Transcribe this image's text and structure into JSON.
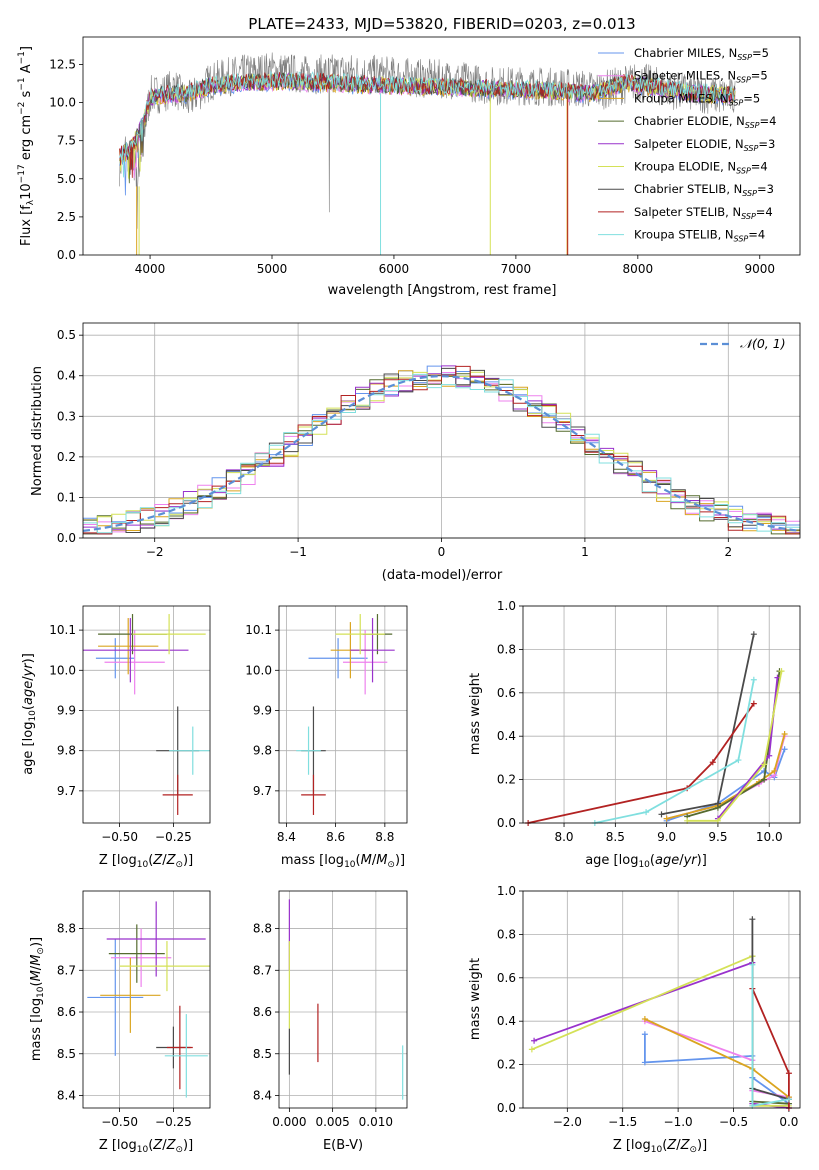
{
  "colors": [
    "#6495ed",
    "#ee82ee",
    "#daa520",
    "#556b2f",
    "#9932cc",
    "#d4e157",
    "#4a4a4a",
    "#b22222",
    "#80dfdf"
  ],
  "models": [
    {
      "label": "Chabrier MILES, N",
      "sub": "SSP",
      "n": "=5"
    },
    {
      "label": "Salpeter MILES, N",
      "sub": "SSP",
      "n": "=5"
    },
    {
      "label": "Kroupa MILES, N",
      "sub": "SSP",
      "n": "=5"
    },
    {
      "label": "Chabrier ELODIE, N",
      "sub": "SSP",
      "n": "=4"
    },
    {
      "label": "Salpeter ELODIE, N",
      "sub": "SSP",
      "n": "=3"
    },
    {
      "label": "Kroupa ELODIE, N",
      "sub": "SSP",
      "n": "=4"
    },
    {
      "label": "Chabrier STELIB, N",
      "sub": "SSP",
      "n": "=3"
    },
    {
      "label": "Salpeter STELIB, N",
      "sub": "SSP",
      "n": "=4"
    },
    {
      "label": "Kroupa STELIB, N",
      "sub": "SSP",
      "n": "=4"
    }
  ],
  "chart_data": [
    {
      "id": "spectrum",
      "type": "line",
      "title": "PLATE=2433, MJD=53820, FIBERID=0203, z=0.013",
      "xlabel": "wavelength [Angstrom, rest frame]",
      "ylabel": "Flux [fλ10⁻¹⁷ erg cm⁻² s⁻¹ A⁻¹]",
      "xlim": [
        3450,
        9330
      ],
      "ylim": [
        0,
        14.3
      ],
      "xticks": [
        4000,
        5000,
        6000,
        7000,
        8000,
        9000
      ],
      "yticks": [
        0.0,
        2.5,
        5.0,
        7.5,
        10.0,
        12.5
      ],
      "data_wavelength": [
        3750,
        3800,
        3850,
        3900,
        3950,
        4000,
        4100,
        4200,
        4300,
        4500,
        4700,
        5000,
        5300,
        5600,
        5900,
        6200,
        6500,
        6800,
        7100,
        7400,
        7700,
        8000,
        8300,
        8600,
        8800
      ],
      "data_flux": [
        5.8,
        7.0,
        6.0,
        5.5,
        8.0,
        10.5,
        10.6,
        11.0,
        10.0,
        11.4,
        11.8,
        12.1,
        11.8,
        12.0,
        11.8,
        11.6,
        11.5,
        11.1,
        11.1,
        11.0,
        10.8,
        11.4,
        10.8,
        10.5,
        10.3
      ],
      "model_wavelength": [
        3750,
        3850,
        3950,
        4000,
        4100,
        4300,
        4500,
        4800,
        5100,
        5400,
        5700,
        6000,
        6400,
        6800,
        7200,
        7600,
        7900,
        8200,
        8500,
        8700
      ],
      "model_flux": [
        6.5,
        7.0,
        8.8,
        10.3,
        10.5,
        10.6,
        11.1,
        11.3,
        11.4,
        11.3,
        11.2,
        11.1,
        11.0,
        10.9,
        10.8,
        10.6,
        11.3,
        10.9,
        10.6,
        10.5
      ],
      "grid": false,
      "legend": "upper-right"
    },
    {
      "id": "residuals",
      "type": "histogram",
      "xlabel": "(data-model)/error",
      "ylabel": "Normed distribution",
      "xlim": [
        -2.5,
        2.5
      ],
      "ylim": [
        0,
        0.53
      ],
      "xticks": [
        -2,
        -1,
        0,
        1,
        2
      ],
      "yticks": [
        0.0,
        0.1,
        0.2,
        0.3,
        0.4,
        0.5
      ],
      "bin_width": 0.1,
      "reference": "𝒩(0, 1)",
      "reference_color": "#5b8fd6",
      "grid": true,
      "legend": "upper-right"
    },
    {
      "id": "age_vs_Z",
      "type": "scatter",
      "xlabel": "Z [log₁₀(Z/Z⊙)]",
      "ylabel": "age  [log₁₀(age/yr)]",
      "xlim": [
        -0.67,
        -0.08
      ],
      "ylim": [
        9.62,
        10.16
      ],
      "xticks": [
        -0.5,
        -0.25
      ],
      "yticks": [
        9.7,
        9.8,
        9.9,
        10.0,
        10.1
      ],
      "points": [
        {
          "x": -0.52,
          "y": 10.03,
          "ex": 0.09,
          "ey": 0.05
        },
        {
          "x": -0.43,
          "y": 10.02,
          "ex": 0.14,
          "ey": 0.08
        },
        {
          "x": -0.46,
          "y": 10.06,
          "ex": 0.14,
          "ey": 0.07
        },
        {
          "x": -0.44,
          "y": 10.09,
          "ex": 0.16,
          "ey": 0.05
        },
        {
          "x": -0.45,
          "y": 10.05,
          "ex": 0.27,
          "ey": 0.08
        },
        {
          "x": -0.27,
          "y": 10.09,
          "ex": 0.17,
          "ey": 0.05
        },
        {
          "x": -0.23,
          "y": 9.8,
          "ex": 0.1,
          "ey": 0.11
        },
        {
          "x": -0.23,
          "y": 9.69,
          "ex": 0.07,
          "ey": 0.05
        },
        {
          "x": -0.16,
          "y": 9.8,
          "ex": 0.11,
          "ey": 0.06
        }
      ],
      "grid": true
    },
    {
      "id": "age_vs_mass",
      "type": "scatter",
      "xlabel": "mass [log₁₀(M/M⊙)]",
      "ylabel": "",
      "xlim": [
        8.37,
        8.89
      ],
      "ylim": [
        9.62,
        10.16
      ],
      "xticks": [
        8.4,
        8.6,
        8.8
      ],
      "yticks": [
        9.7,
        9.8,
        9.9,
        10.0,
        10.1
      ],
      "points": [
        {
          "x": 8.61,
          "y": 10.03,
          "ex": 0.12,
          "ey": 0.05
        },
        {
          "x": 8.72,
          "y": 10.02,
          "ex": 0.09,
          "ey": 0.08
        },
        {
          "x": 8.66,
          "y": 10.05,
          "ex": 0.08,
          "ey": 0.07
        },
        {
          "x": 8.77,
          "y": 10.09,
          "ex": 0.06,
          "ey": 0.05
        },
        {
          "x": 8.75,
          "y": 10.05,
          "ex": 0.09,
          "ey": 0.08
        },
        {
          "x": 8.7,
          "y": 10.09,
          "ex": 0.1,
          "ey": 0.05
        },
        {
          "x": 8.51,
          "y": 9.8,
          "ex": 0.05,
          "ey": 0.11
        },
        {
          "x": 8.51,
          "y": 9.69,
          "ex": 0.05,
          "ey": 0.05
        },
        {
          "x": 8.49,
          "y": 9.8,
          "ex": 0.05,
          "ey": 0.06
        }
      ],
      "grid": true
    },
    {
      "id": "weight_vs_age",
      "type": "line",
      "xlabel": "age  [log₁₀(age/yr)]",
      "ylabel": "mass weight",
      "xlim": [
        7.6,
        10.3
      ],
      "ylim": [
        0,
        1.0
      ],
      "xticks": [
        8.0,
        8.5,
        9.0,
        9.5,
        10.0
      ],
      "yticks": [
        0.0,
        0.2,
        0.4,
        0.6,
        0.8,
        1.0
      ],
      "series": [
        {
          "x": [
            9.0,
            9.5,
            9.95,
            10.05,
            10.15
          ],
          "y": [
            0.01,
            0.09,
            0.24,
            0.21,
            0.34
          ]
        },
        {
          "x": [
            9.0,
            9.5,
            9.9,
            10.05,
            10.15
          ],
          "y": [
            0.02,
            0.08,
            0.18,
            0.22,
            0.4
          ]
        },
        {
          "x": [
            9.0,
            9.5,
            9.9,
            10.05,
            10.15
          ],
          "y": [
            0.02,
            0.08,
            0.19,
            0.24,
            0.41
          ]
        },
        {
          "x": [
            9.2,
            9.5,
            9.95,
            10.1
          ],
          "y": [
            0.03,
            0.07,
            0.2,
            0.7
          ]
        },
        {
          "x": [
            9.5,
            10.0,
            10.08
          ],
          "y": [
            0.02,
            0.31,
            0.67
          ]
        },
        {
          "x": [
            9.2,
            9.5,
            9.95,
            10.12
          ],
          "y": [
            0.01,
            0.01,
            0.27,
            0.7
          ]
        },
        {
          "x": [
            8.95,
            9.5,
            9.85
          ],
          "y": [
            0.04,
            0.09,
            0.87
          ]
        },
        {
          "x": [
            7.65,
            9.2,
            9.45,
            9.85
          ],
          "y": [
            0.0,
            0.16,
            0.28,
            0.55
          ]
        },
        {
          "x": [
            8.3,
            8.8,
            9.7,
            9.85
          ],
          "y": [
            0.0,
            0.05,
            0.29,
            0.66
          ]
        }
      ],
      "grid": true
    },
    {
      "id": "mass_vs_Z",
      "type": "scatter",
      "xlabel": "Z [log₁₀(Z/Z⊙)]",
      "ylabel": "mass [log₁₀(M/M⊙)]",
      "xlim": [
        -0.67,
        -0.08
      ],
      "ylim": [
        8.37,
        8.89
      ],
      "xticks": [
        -0.5,
        -0.25
      ],
      "yticks": [
        8.4,
        8.5,
        8.6,
        8.7,
        8.8
      ],
      "points": [
        {
          "x": -0.52,
          "y": 8.635,
          "ex": 0.13,
          "ey": 0.14
        },
        {
          "x": -0.4,
          "y": 8.73,
          "ex": 0.14,
          "ey": 0.07
        },
        {
          "x": -0.45,
          "y": 8.64,
          "ex": 0.14,
          "ey": 0.09
        },
        {
          "x": -0.42,
          "y": 8.74,
          "ex": 0.13,
          "ey": 0.07
        },
        {
          "x": -0.33,
          "y": 8.775,
          "ex": 0.23,
          "ey": 0.09
        },
        {
          "x": -0.28,
          "y": 8.71,
          "ex": 0.22,
          "ey": 0.06
        },
        {
          "x": -0.25,
          "y": 8.515,
          "ex": 0.08,
          "ey": 0.05
        },
        {
          "x": -0.22,
          "y": 8.515,
          "ex": 0.06,
          "ey": 0.1
        },
        {
          "x": -0.19,
          "y": 8.495,
          "ex": 0.1,
          "ey": 0.1
        }
      ],
      "grid": true
    },
    {
      "id": "mass_vs_ebv",
      "type": "scatter",
      "xlabel": "E(B-V)",
      "ylabel": "",
      "xlim": [
        -0.0012,
        0.0136
      ],
      "ylim": [
        8.37,
        8.89
      ],
      "xticks": [
        0.0,
        0.005,
        0.01
      ],
      "yticks": [
        8.4,
        8.5,
        8.6,
        8.7,
        8.8
      ],
      "segments": [
        {
          "x": 0.0,
          "y0": 8.7,
          "y1": 8.87,
          "color": "#9932cc"
        },
        {
          "x": 0.0,
          "y0": 8.56,
          "y1": 8.77,
          "color": "#d4e157"
        },
        {
          "x": 0.0,
          "y0": 8.45,
          "y1": 8.56,
          "color": "#4a4a4a"
        },
        {
          "x": 0.0033,
          "y0": 8.48,
          "y1": 8.62,
          "color": "#b22222"
        },
        {
          "x": 0.0131,
          "y0": 8.39,
          "y1": 8.52,
          "color": "#80dfdf"
        }
      ],
      "grid": true
    },
    {
      "id": "weight_vs_Z",
      "type": "line",
      "xlabel": "Z [log₁₀(Z/Z⊙)]",
      "ylabel": "mass weight",
      "xlim": [
        -2.4,
        0.1
      ],
      "ylim": [
        0,
        1.0
      ],
      "xticks": [
        -2.0,
        -1.5,
        -1.0,
        -0.5,
        0.0
      ],
      "yticks": [
        0.0,
        0.2,
        0.4,
        0.6,
        0.8,
        1.0
      ],
      "series": [
        {
          "x": [
            -1.3,
            -1.3,
            -0.33,
            -0.33,
            0.0
          ],
          "y": [
            0.34,
            0.21,
            0.24,
            0.14,
            0.02
          ]
        },
        {
          "x": [
            -1.3,
            -0.33,
            -0.33,
            0.0
          ],
          "y": [
            0.4,
            0.22,
            0.08,
            0.05
          ]
        },
        {
          "x": [
            -1.3,
            -0.33,
            0.0
          ],
          "y": [
            0.41,
            0.18,
            0.05
          ]
        },
        {
          "x": [
            -0.33,
            -0.33,
            0.0
          ],
          "y": [
            0.7,
            0.03,
            0.02
          ]
        },
        {
          "x": [
            -2.3,
            -0.33,
            -0.33,
            0.0
          ],
          "y": [
            0.31,
            0.67,
            0.02,
            0.0
          ]
        },
        {
          "x": [
            -2.32,
            -0.33,
            -0.33,
            0.0
          ],
          "y": [
            0.27,
            0.7,
            0.01,
            0.01
          ]
        },
        {
          "x": [
            -0.33,
            -0.33,
            0.0
          ],
          "y": [
            0.87,
            0.09,
            0.04
          ]
        },
        {
          "x": [
            -0.33,
            0.0,
            0.0
          ],
          "y": [
            0.55,
            0.16,
            0.0
          ]
        },
        {
          "x": [
            -0.33,
            -0.33,
            0.0
          ],
          "y": [
            0.66,
            0.01,
            0.04
          ]
        }
      ],
      "grid": true
    }
  ]
}
